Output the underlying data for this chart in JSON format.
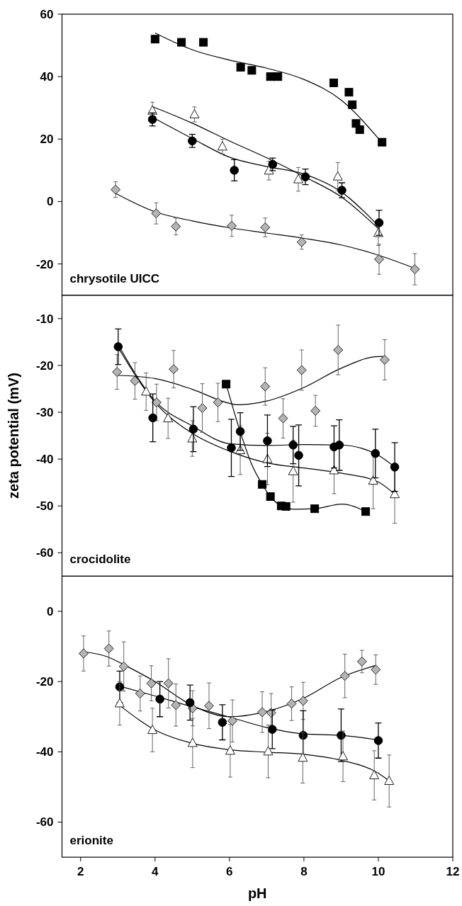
{
  "chart_data": [
    {
      "type": "scatter",
      "annotations": [
        "chrysotile UICC"
      ],
      "xlim": [
        1.5,
        12
      ],
      "ylim": [
        -30,
        60
      ],
      "yticks": [
        -20,
        0,
        20,
        40,
        60
      ],
      "tick_labels": "y",
      "series": [
        {
          "type": "line",
          "marker": "none",
          "color": "#000000",
          "x": [
            4.0,
            5,
            6,
            7,
            8,
            9,
            10
          ],
          "values": [
            54,
            48.6,
            45.3,
            42.7,
            39.1,
            32.5,
            20.2
          ]
        },
        {
          "type": "line",
          "marker": "none",
          "color": "#000000",
          "x": [
            3.93,
            5,
            6,
            7,
            8,
            9,
            10
          ],
          "values": [
            30.4,
            25.1,
            19.4,
            14.0,
            8.0,
            1.5,
            -8.7
          ]
        },
        {
          "type": "line",
          "marker": "none",
          "color": "#000000",
          "x": [
            3.93,
            5,
            6,
            7,
            8,
            9,
            10
          ],
          "values": [
            27.0,
            20.2,
            14.2,
            11.2,
            8.8,
            3.1,
            -7.8
          ]
        },
        {
          "type": "line",
          "marker": "none",
          "color": "#000000",
          "x": [
            2.94,
            4,
            5,
            6,
            7,
            8,
            9,
            10,
            11
          ],
          "values": [
            2.6,
            -3.3,
            -6.2,
            -8.4,
            -10.1,
            -11.8,
            -13.9,
            -17.2,
            -21.5
          ]
        },
        {
          "type": "scatter",
          "marker": "square",
          "color": "#000000",
          "x": [
            4.0,
            4.71,
            5.3,
            6.3,
            6.6,
            7.1,
            7.3,
            8.8,
            9.21,
            9.3,
            9.4,
            9.5,
            10.1
          ],
          "values": [
            52,
            51,
            51,
            43,
            42,
            40,
            40,
            38,
            35,
            31,
            25,
            23,
            19
          ]
        },
        {
          "type": "scatter",
          "marker": "triangle",
          "color": "#ffffff",
          "x": [
            3.93,
            5.06,
            5.81,
            7.06,
            7.85,
            8.91,
            10.0
          ],
          "values": [
            29.1,
            27.9,
            17.6,
            9.9,
            7.1,
            8.0,
            -10.1
          ],
          "errors": [
            2.7,
            2.4,
            2.4,
            3,
            3.8,
            4.5,
            4
          ]
        },
        {
          "type": "scatter",
          "marker": "circle",
          "color": "#000000",
          "x": [
            3.93,
            5.0,
            6.13,
            7.16,
            8.04,
            9.02,
            10.02
          ],
          "values": [
            26.3,
            19.4,
            10.0,
            11.9,
            7.9,
            3.6,
            -6.8
          ],
          "errors": [
            2.1,
            2.1,
            3.4,
            2,
            2.5,
            2.4,
            4
          ]
        },
        {
          "type": "scatter",
          "marker": "diamond",
          "color": "#b4b4b4",
          "x": [
            2.94,
            4.03,
            4.56,
            6.06,
            6.96,
            7.94,
            10.02,
            10.98
          ],
          "values": [
            3.8,
            -3.8,
            -8.0,
            -7.8,
            -8.3,
            -13.0,
            -18.5,
            -21.7
          ],
          "errors": [
            2.5,
            3.4,
            2.7,
            3.4,
            3,
            2.3,
            4.8,
            5
          ]
        }
      ]
    },
    {
      "type": "scatter",
      "ylabel": "zeta potential (mV)",
      "annotations": [
        "crocidolite"
      ],
      "xlim": [
        1.5,
        12
      ],
      "ylim": [
        -65,
        -5
      ],
      "yticks": [
        -60,
        -50,
        -40,
        -30,
        -20,
        -10
      ],
      "tick_labels": "y",
      "series": [
        {
          "type": "line",
          "marker": "none",
          "color": "#000000",
          "x": [
            2.98,
            4,
            5,
            6,
            6.2,
            7,
            8,
            9,
            10,
            10.17
          ],
          "values": [
            -22.1,
            -22.8,
            -25.1,
            -28.1,
            -28.4,
            -27.6,
            -24.7,
            -20.6,
            -18.1,
            -18.1
          ]
        },
        {
          "type": "line",
          "marker": "none",
          "color": "#000000",
          "x": [
            3.01,
            4,
            5,
            6,
            7,
            8,
            9,
            10,
            10.44
          ],
          "values": [
            -15.6,
            -27.6,
            -32.9,
            -36.7,
            -37.1,
            -36.9,
            -37.0,
            -39.2,
            -41.7
          ]
        },
        {
          "type": "line",
          "marker": "none",
          "color": "#000000",
          "x": [
            3.01,
            4,
            5,
            6,
            7,
            8,
            9,
            10,
            10.44
          ],
          "values": [
            -16.2,
            -27.9,
            -34.5,
            -38.3,
            -40.8,
            -41.9,
            -43.0,
            -44.9,
            -47.5
          ]
        },
        {
          "type": "line",
          "marker": "none",
          "color": "#000000",
          "x": [
            5.91,
            6.29,
            6.58,
            6.88,
            7.1,
            7.39,
            7.75,
            8.29,
            9.02,
            9.66
          ],
          "values": [
            -24.0,
            -34.2,
            -40.8,
            -45.4,
            -48.0,
            -50.0,
            -50.7,
            -50.6,
            -49.6,
            -51.2
          ]
        },
        {
          "type": "scatter",
          "marker": "diamond",
          "color": "#b4b4b4",
          "x": [
            2.98,
            3.46,
            4.04,
            4.5,
            5.27,
            5.69,
            6.96,
            7.44,
            7.94,
            8.31,
            8.92,
            10.17
          ],
          "values": [
            -21.4,
            -23.3,
            -27.9,
            -20.8,
            -29.1,
            -27.9,
            -24.5,
            -31.3,
            -21.0,
            -29.7,
            -16.7,
            -18.8
          ],
          "errors": [
            3.7,
            3.9,
            3.9,
            4,
            5.2,
            4.1,
            4,
            4.2,
            4.3,
            3.3,
            5.3,
            4.3
          ]
        },
        {
          "type": "scatter",
          "marker": "triangle",
          "color": "#ffffff",
          "x": [
            3.76,
            4.35,
            5.0,
            6.29,
            7.02,
            7.71,
            8.81,
            9.86,
            10.44
          ],
          "values": [
            -25.6,
            -31.3,
            -35.6,
            -38.1,
            -40.0,
            -42.6,
            -42.4,
            -44.6,
            -47.5
          ],
          "errors": [
            4,
            4.3,
            3.8,
            5.2,
            5.5,
            6.6,
            5,
            6,
            6.2
          ]
        },
        {
          "type": "scatter",
          "marker": "circle",
          "color": "#000000",
          "x": [
            3.01,
            3.94,
            5.03,
            6.05,
            6.29,
            7.02,
            7.71,
            7.86,
            8.81,
            8.95,
            9.92,
            10.44
          ],
          "values": [
            -16.0,
            -31.2,
            -33.6,
            -37.6,
            -34.1,
            -36.1,
            -37.0,
            -39.2,
            -37.4,
            -37.0,
            -38.8,
            -41.7
          ],
          "errors": [
            3.8,
            5.1,
            4.8,
            6.1,
            4,
            5.5,
            4,
            6.5,
            4.5,
            5.4,
            5.2,
            5.2
          ]
        },
        {
          "type": "scatter",
          "marker": "square",
          "color": "#000000",
          "x": [
            5.91,
            6.88,
            7.1,
            7.39,
            7.52,
            8.29,
            9.66
          ],
          "values": [
            -24.0,
            -45.4,
            -48.0,
            -50.0,
            -50.1,
            -50.6,
            -51.2
          ]
        }
      ]
    },
    {
      "type": "scatter",
      "xlabel": "pH",
      "annotations": [
        "erionite"
      ],
      "xlim": [
        1.5,
        12
      ],
      "xticks": [
        2,
        4,
        6,
        8,
        10,
        12
      ],
      "ylim": [
        -70,
        10
      ],
      "yticks": [
        -60,
        -40,
        -20,
        0
      ],
      "series": [
        {
          "type": "line",
          "marker": "none",
          "color": "#000000",
          "x": [
            2.08,
            2.76,
            3.16,
            4,
            5,
            6,
            7,
            8,
            9,
            9.93
          ],
          "values": [
            -11.5,
            -13.1,
            -15.2,
            -20.0,
            -26.8,
            -30.0,
            -28.5,
            -24.7,
            -18.8,
            -15.4
          ]
        },
        {
          "type": "line",
          "marker": "none",
          "color": "#000000",
          "x": [
            3.05,
            4,
            5,
            6,
            7,
            8,
            9,
            10
          ],
          "values": [
            -21.3,
            -24.1,
            -27.2,
            -30.1,
            -33.1,
            -34.9,
            -35.3,
            -36.6
          ]
        },
        {
          "type": "line",
          "marker": "none",
          "color": "#000000",
          "x": [
            3.05,
            4,
            5,
            6,
            7,
            8,
            9,
            10,
            10.29
          ],
          "values": [
            -26.8,
            -33.8,
            -37.6,
            -39.4,
            -40.1,
            -40.7,
            -42.4,
            -46.1,
            -48.3
          ]
        },
        {
          "type": "scatter",
          "marker": "diamond",
          "color": "#b4b4b4",
          "x": [
            2.08,
            2.76,
            3.16,
            3.6,
            3.9,
            4.36,
            4.56,
            5.01,
            5.45,
            6.08,
            6.88,
            7.12,
            7.67,
            7.98,
            9.1,
            9.56,
            9.93
          ],
          "values": [
            -12.0,
            -10.6,
            -15.7,
            -23.4,
            -20.5,
            -20.5,
            -26.7,
            -27.6,
            -26.9,
            -31.2,
            -28.7,
            -28.9,
            -26.3,
            -25.5,
            -18.4,
            -14.3,
            -16.6
          ],
          "errors": [
            5,
            5,
            7,
            5,
            5,
            7,
            6,
            5,
            6.5,
            6,
            5.8,
            5.5,
            4.8,
            5.3,
            6.2,
            3.2,
            4.2
          ]
        },
        {
          "type": "scatter",
          "marker": "circle",
          "color": "#000000",
          "x": [
            3.05,
            4.13,
            4.94,
            5.81,
            7.15,
            7.98,
            9.0,
            10.0
          ],
          "values": [
            -21.5,
            -25.0,
            -26.0,
            -31.6,
            -33.6,
            -35.3,
            -35.3,
            -36.8
          ],
          "errors": [
            4.5,
            5,
            5,
            5,
            5.5,
            7,
            7.5,
            5
          ]
        },
        {
          "type": "scatter",
          "marker": "triangle",
          "color": "#ffffff",
          "x": [
            3.05,
            3.93,
            5.01,
            6.02,
            7.04,
            7.97,
            9.05,
            9.89,
            10.29
          ],
          "values": [
            -26.2,
            -33.8,
            -37.5,
            -39.7,
            -39.9,
            -41.7,
            -41.3,
            -46.7,
            -48.3
          ],
          "errors": [
            6.2,
            6.2,
            7,
            7.5,
            7.5,
            7.2,
            7.2,
            7,
            7.4
          ]
        }
      ]
    }
  ]
}
